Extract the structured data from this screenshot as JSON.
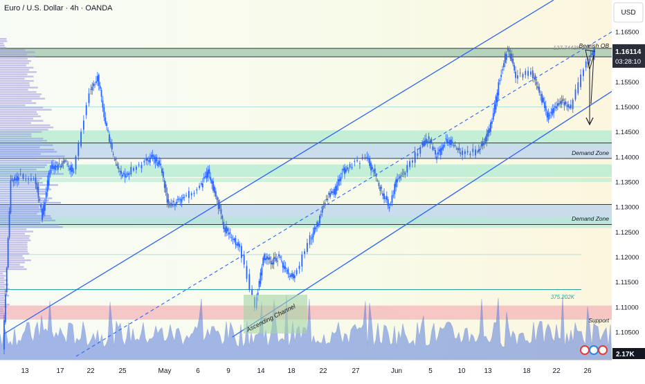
{
  "header": {
    "title": "Euro / U.S. Dollar · 4h · OANDA"
  },
  "axis": {
    "currency": "USD",
    "price_ticks": [
      "1.16500",
      "1.16000",
      "1.15500",
      "1.15000",
      "1.14500",
      "1.14000",
      "1.13500",
      "1.13000",
      "1.12500",
      "1.12000",
      "1.11500",
      "1.11000",
      "1.10500"
    ],
    "date_ticks": [
      "13",
      "17",
      "22",
      "25",
      "May",
      "6",
      "9",
      "14",
      "18",
      "22",
      "27",
      "Jun",
      "5",
      "10",
      "13",
      "18",
      "22",
      "26"
    ],
    "last_price": "1.16114",
    "countdown": "03:28:10",
    "volume_value": "2.17K"
  },
  "annotations": {
    "bearish_ob": "Bearish OB",
    "demand_zone_upper": "Demand Zone",
    "demand_zone_lower": "Demand Zone",
    "support": "Support",
    "channel": "Ascending Channel",
    "fib_upper": "127.7443K",
    "fib_lower": "375.202K"
  },
  "colors": {
    "candle": "#2962ff",
    "channel": "#2962ff",
    "demand_zone": "#b9d3ee",
    "light_green_zone": "#b2ebd0",
    "support_zone": "#f4b6b8",
    "bearish_ob": "#a5c9b0",
    "volume": "#5b7fdc",
    "profile": "#9b8fe0"
  },
  "chart_data": {
    "type": "candlestick",
    "ylim": [
      1.1015,
      1.1685
    ],
    "x_range": [
      "Apr 10",
      "Jun 26"
    ],
    "price_path": [
      {
        "date": "Apr 10",
        "price": 1.102
      },
      {
        "date": "Apr 11",
        "price": 1.135
      },
      {
        "date": "Apr 12",
        "price": 1.136
      },
      {
        "date": "Apr 14",
        "price": 1.136
      },
      {
        "date": "Apr 15",
        "price": 1.128
      },
      {
        "date": "Apr 16",
        "price": 1.138
      },
      {
        "date": "Apr 17",
        "price": 1.138
      },
      {
        "date": "Apr 18",
        "price": 1.139
      },
      {
        "date": "Apr 19",
        "price": 1.137
      },
      {
        "date": "Apr 21",
        "price": 1.153
      },
      {
        "date": "Apr 22",
        "price": 1.156
      },
      {
        "date": "Apr 23",
        "price": 1.147
      },
      {
        "date": "Apr 24",
        "price": 1.14
      },
      {
        "date": "Apr 25",
        "price": 1.136
      },
      {
        "date": "Apr 26",
        "price": 1.137
      },
      {
        "date": "Apr 28",
        "price": 1.139
      },
      {
        "date": "Apr 29",
        "price": 1.14
      },
      {
        "date": "Apr 30",
        "price": 1.138
      },
      {
        "date": "May 1",
        "price": 1.13
      },
      {
        "date": "May 2",
        "price": 1.131
      },
      {
        "date": "May 3",
        "price": 1.132
      },
      {
        "date": "May 5",
        "price": 1.134
      },
      {
        "date": "May 6",
        "price": 1.137
      },
      {
        "date": "May 7",
        "price": 1.132
      },
      {
        "date": "May 8",
        "price": 1.126
      },
      {
        "date": "May 9",
        "price": 1.124
      },
      {
        "date": "May 10",
        "price": 1.122
      },
      {
        "date": "May 12",
        "price": 1.11
      },
      {
        "date": "May 13",
        "price": 1.12
      },
      {
        "date": "May 14",
        "price": 1.119
      },
      {
        "date": "May 15",
        "price": 1.12
      },
      {
        "date": "May 16",
        "price": 1.117
      },
      {
        "date": "May 17",
        "price": 1.116
      },
      {
        "date": "May 19",
        "price": 1.124
      },
      {
        "date": "May 20",
        "price": 1.127
      },
      {
        "date": "May 21",
        "price": 1.132
      },
      {
        "date": "May 22",
        "price": 1.133
      },
      {
        "date": "May 23",
        "price": 1.137
      },
      {
        "date": "May 24",
        "price": 1.138
      },
      {
        "date": "May 26",
        "price": 1.14
      },
      {
        "date": "May 27",
        "price": 1.137
      },
      {
        "date": "May 28",
        "price": 1.133
      },
      {
        "date": "May 29",
        "price": 1.13
      },
      {
        "date": "May 30",
        "price": 1.136
      },
      {
        "date": "May 31",
        "price": 1.137
      },
      {
        "date": "Jun 2",
        "price": 1.142
      },
      {
        "date": "Jun 3",
        "price": 1.144
      },
      {
        "date": "Jun 4",
        "price": 1.14
      },
      {
        "date": "Jun 5",
        "price": 1.143
      },
      {
        "date": "Jun 6",
        "price": 1.143
      },
      {
        "date": "Jun 7",
        "price": 1.141
      },
      {
        "date": "Jun 9",
        "price": 1.141
      },
      {
        "date": "Jun 10",
        "price": 1.143
      },
      {
        "date": "Jun 11",
        "price": 1.147
      },
      {
        "date": "Jun 12",
        "price": 1.156
      },
      {
        "date": "Jun 13",
        "price": 1.162
      },
      {
        "date": "Jun 14",
        "price": 1.156
      },
      {
        "date": "Jun 16",
        "price": 1.157
      },
      {
        "date": "Jun 17",
        "price": 1.153
      },
      {
        "date": "Jun 18",
        "price": 1.148
      },
      {
        "date": "Jun 19",
        "price": 1.15
      },
      {
        "date": "Jun 20",
        "price": 1.151
      },
      {
        "date": "Jun 21",
        "price": 1.15
      },
      {
        "date": "Jun 23",
        "price": 1.159
      },
      {
        "date": "Jun 24",
        "price": 1.1611
      }
    ],
    "zones": [
      {
        "label": "Bearish OB",
        "low": 1.16,
        "high": 1.1617
      },
      {
        "label": "Demand Zone",
        "low": 1.1397,
        "high": 1.1428
      },
      {
        "label": "",
        "low": 1.1425,
        "high": 1.1453
      },
      {
        "label": "",
        "low": 1.136,
        "high": 1.1385
      },
      {
        "label": "Demand Zone",
        "low": 1.1265,
        "high": 1.1305
      },
      {
        "label": "Support",
        "low": 1.1075,
        "high": 1.1103
      }
    ],
    "channel": {
      "lower": [
        {
          "date": "May 9",
          "price": 1.104
        },
        {
          "date": "Jun 26",
          "price": 1.152
        }
      ],
      "upper": [
        {
          "date": "Apr 10",
          "price": 1.105
        },
        {
          "date": "Jun 13",
          "price": 1.162
        }
      ]
    },
    "projection": [
      {
        "date": "Jun 24",
        "price": 1.1611
      },
      {
        "date": "Jun 25",
        "price": 1.157
      },
      {
        "date": "Jun 26",
        "price": 1.147
      }
    ]
  }
}
